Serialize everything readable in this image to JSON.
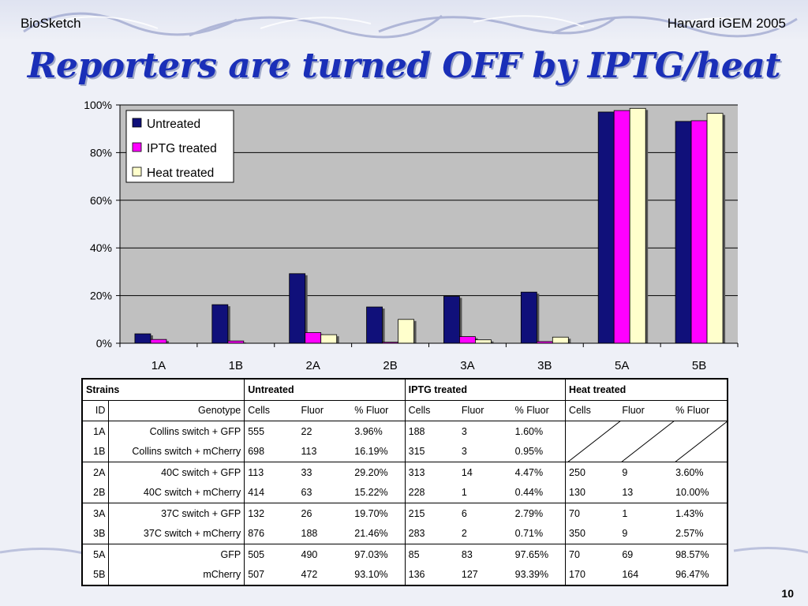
{
  "header": {
    "left": "BioSketch",
    "right": "Harvard iGEM 2005"
  },
  "title": "Reporters are turned OFF by IPTG/heat",
  "page_number": "10",
  "colors": {
    "untreated": "#10107a",
    "iptg": "#ff00ff",
    "heat": "#ffffcc",
    "plot_bg": "#c0c0c0",
    "title": "#1a2fb8"
  },
  "chart_data": {
    "type": "bar",
    "categories": [
      "1A",
      "1B",
      "2A",
      "2B",
      "3A",
      "3B",
      "5A",
      "5B"
    ],
    "series": [
      {
        "name": "Untreated",
        "values": [
          3.96,
          16.19,
          29.2,
          15.22,
          19.7,
          21.46,
          97.03,
          93.1
        ]
      },
      {
        "name": "IPTG treated",
        "values": [
          1.6,
          0.95,
          4.47,
          0.44,
          2.79,
          0.71,
          97.65,
          93.39
        ]
      },
      {
        "name": "Heat treated",
        "values": [
          null,
          null,
          3.6,
          10.0,
          1.43,
          2.57,
          98.57,
          96.47
        ]
      }
    ],
    "yticks": [
      "0%",
      "20%",
      "40%",
      "60%",
      "80%",
      "100%"
    ],
    "ylim": [
      0,
      100
    ],
    "grid": true,
    "legend_position": "top-left"
  },
  "table": {
    "group_headers": [
      "Strains",
      "Untreated",
      "IPTG treated",
      "Heat treated"
    ],
    "col_headers": [
      "ID",
      "Genotype",
      "Cells",
      "Fluor",
      "% Fluor",
      "Cells",
      "Fluor",
      "% Fluor",
      "Cells",
      "Fluor",
      "% Fluor"
    ],
    "rows": [
      [
        "1A",
        "Collins switch + GFP",
        "555",
        "22",
        "3.96%",
        "188",
        "3",
        "1.60%",
        "",
        "",
        ""
      ],
      [
        "1B",
        "Collins switch + mCherry",
        "698",
        "113",
        "16.19%",
        "315",
        "3",
        "0.95%",
        "",
        "",
        ""
      ],
      [
        "2A",
        "40C switch + GFP",
        "113",
        "33",
        "29.20%",
        "313",
        "14",
        "4.47%",
        "250",
        "9",
        "3.60%"
      ],
      [
        "2B",
        "40C switch + mCherry",
        "414",
        "63",
        "15.22%",
        "228",
        "1",
        "0.44%",
        "130",
        "13",
        "10.00%"
      ],
      [
        "3A",
        "37C switch + GFP",
        "132",
        "26",
        "19.70%",
        "215",
        "6",
        "2.79%",
        "70",
        "1",
        "1.43%"
      ],
      [
        "3B",
        "37C switch + mCherry",
        "876",
        "188",
        "21.46%",
        "283",
        "2",
        "0.71%",
        "350",
        "9",
        "2.57%"
      ],
      [
        "5A",
        "GFP",
        "505",
        "490",
        "97.03%",
        "85",
        "83",
        "97.65%",
        "70",
        "69",
        "98.57%"
      ],
      [
        "5B",
        "mCherry",
        "507",
        "472",
        "93.10%",
        "136",
        "127",
        "93.39%",
        "170",
        "164",
        "96.47%"
      ]
    ]
  }
}
